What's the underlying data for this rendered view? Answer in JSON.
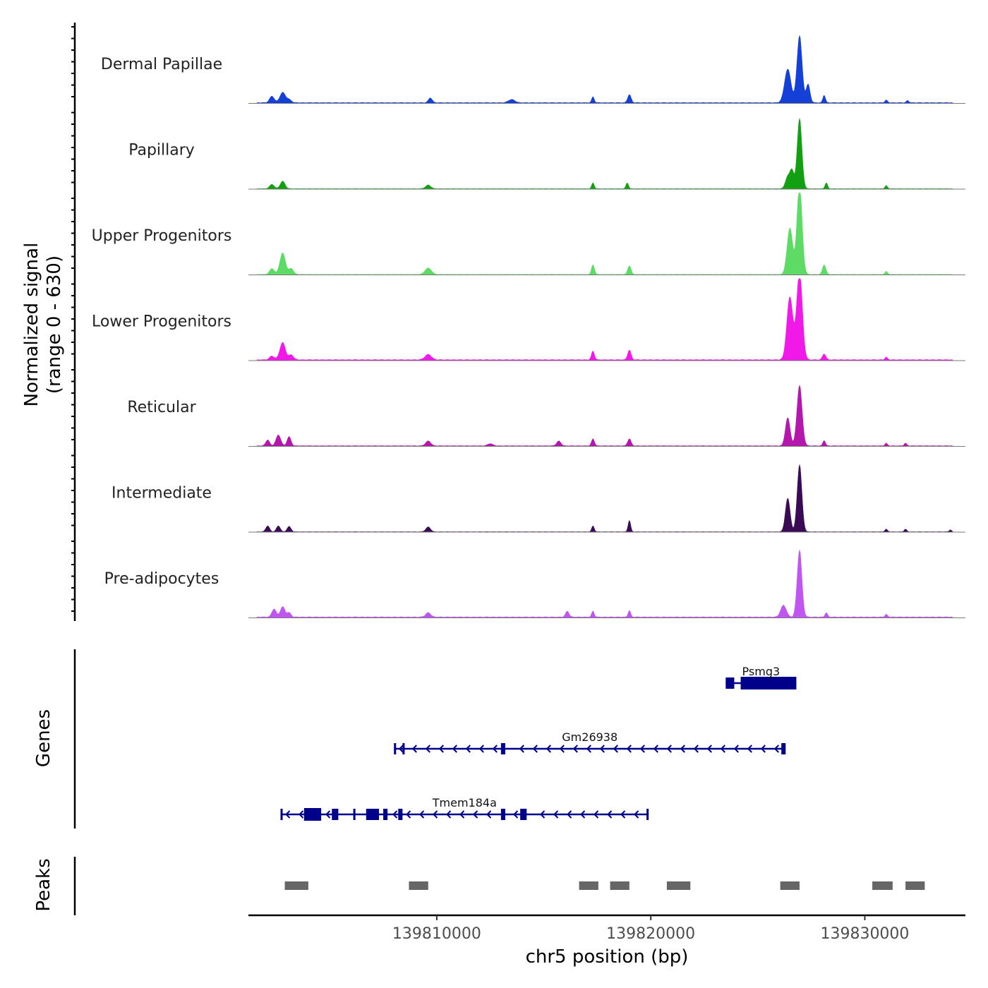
{
  "chart_data": {
    "type": "area",
    "title": "",
    "xlabel": "chr5 position (bp)",
    "ylabel": "Normalized signal\n(range 0 - 630)",
    "ylabel_lines": [
      "Normalized signal",
      "(range 0 - 630)"
    ],
    "ylim": [
      0,
      630
    ],
    "xlim": [
      139801200,
      139834700
    ],
    "xticks": [
      139810000,
      139820000,
      139830000
    ],
    "xtick_labels": [
      "139810000",
      "139820000",
      "139830000"
    ],
    "tracks": [
      {
        "name": "Dermal Papillae",
        "color": "#1440D8",
        "peaks": [
          [
            139802300,
            60,
            110
          ],
          [
            139802800,
            95,
            130
          ],
          [
            139803100,
            28,
            110
          ],
          [
            139809700,
            45,
            90
          ],
          [
            139813500,
            30,
            150
          ],
          [
            139817300,
            55,
            60
          ],
          [
            139819000,
            75,
            80
          ],
          [
            139826400,
            310,
            150
          ],
          [
            139826950,
            620,
            120
          ],
          [
            139827350,
            170,
            90
          ],
          [
            139828100,
            70,
            60
          ],
          [
            139831000,
            25,
            60
          ],
          [
            139832000,
            20,
            60
          ]
        ],
        "base": 10
      },
      {
        "name": "Papillary",
        "color": "#12A012",
        "peaks": [
          [
            139802300,
            40,
            110
          ],
          [
            139802800,
            70,
            110
          ],
          [
            139809600,
            35,
            120
          ],
          [
            139817300,
            55,
            60
          ],
          [
            139818900,
            55,
            60
          ],
          [
            139826400,
            110,
            110
          ],
          [
            139826950,
            650,
            110
          ],
          [
            139826600,
            160,
            90
          ],
          [
            139828200,
            55,
            60
          ],
          [
            139831000,
            30,
            60
          ]
        ],
        "base": 6
      },
      {
        "name": "Upper Progenitors",
        "color": "#5EDB64",
        "peaks": [
          [
            139802300,
            55,
            110
          ],
          [
            139802800,
            200,
            130
          ],
          [
            139803200,
            55,
            110
          ],
          [
            139809600,
            60,
            150
          ],
          [
            139817300,
            90,
            70
          ],
          [
            139819000,
            80,
            80
          ],
          [
            139826500,
            430,
            130
          ],
          [
            139826950,
            840,
            120
          ],
          [
            139828100,
            90,
            80
          ],
          [
            139831000,
            30,
            60
          ]
        ],
        "base": 6
      },
      {
        "name": "Lower Progenitors",
        "color": "#F019E8",
        "peaks": [
          [
            139802300,
            35,
            110
          ],
          [
            139802800,
            160,
            130
          ],
          [
            139803200,
            45,
            110
          ],
          [
            139809600,
            50,
            150
          ],
          [
            139817300,
            80,
            70
          ],
          [
            139819000,
            90,
            80
          ],
          [
            139826500,
            580,
            140
          ],
          [
            139826950,
            830,
            130
          ],
          [
            139828100,
            55,
            80
          ],
          [
            139831000,
            25,
            60
          ]
        ],
        "base": 12
      },
      {
        "name": "Reticular",
        "color": "#B317AC",
        "peaks": [
          [
            139802100,
            55,
            90
          ],
          [
            139802600,
            100,
            110
          ],
          [
            139803100,
            85,
            90
          ],
          [
            139809600,
            45,
            120
          ],
          [
            139812500,
            20,
            120
          ],
          [
            139815700,
            45,
            100
          ],
          [
            139817300,
            65,
            70
          ],
          [
            139819000,
            65,
            80
          ],
          [
            139826400,
            260,
            110
          ],
          [
            139826950,
            560,
            120
          ],
          [
            139828100,
            50,
            60
          ],
          [
            139831000,
            25,
            60
          ],
          [
            139831900,
            25,
            60
          ]
        ],
        "base": 8
      },
      {
        "name": "Intermediate",
        "color": "#3A0A55",
        "peaks": [
          [
            139802100,
            55,
            90
          ],
          [
            139802600,
            55,
            90
          ],
          [
            139803100,
            50,
            90
          ],
          [
            139809600,
            45,
            110
          ],
          [
            139817300,
            55,
            60
          ],
          [
            139819000,
            105,
            60
          ],
          [
            139826400,
            310,
            110
          ],
          [
            139826950,
            620,
            110
          ],
          [
            139831000,
            25,
            60
          ],
          [
            139831900,
            25,
            60
          ],
          [
            139834000,
            18,
            60
          ]
        ],
        "base": 5
      },
      {
        "name": "Pre-adipocytes",
        "color": "#C155F1",
        "peaks": [
          [
            139802400,
            75,
            100
          ],
          [
            139802800,
            95,
            110
          ],
          [
            139803100,
            40,
            90
          ],
          [
            139809600,
            40,
            120
          ],
          [
            139816100,
            55,
            80
          ],
          [
            139817300,
            55,
            60
          ],
          [
            139819000,
            60,
            60
          ],
          [
            139826200,
            110,
            130
          ],
          [
            139826950,
            620,
            110
          ],
          [
            139828200,
            40,
            60
          ],
          [
            139831000,
            25,
            60
          ]
        ],
        "base": 12
      }
    ],
    "genes_track_label": "Genes",
    "genes": [
      {
        "name": "Psmg3",
        "start": 139823500,
        "end": 139826800,
        "strand": "-",
        "exons": [
          [
            139823500,
            139823900
          ],
          [
            139824200,
            139826800
          ]
        ]
      },
      {
        "name": "Gm26938",
        "start": 139808000,
        "end": 139826300,
        "strand": "-",
        "exons": [
          [
            139808000,
            139808100
          ],
          [
            139808400,
            139808500
          ],
          [
            139813000,
            139813200
          ],
          [
            139826100,
            139826300
          ]
        ]
      },
      {
        "name": "Tmem184a",
        "start": 139802700,
        "end": 139819900,
        "strand": "-",
        "exons": [
          [
            139802700,
            139802800
          ],
          [
            139803800,
            139804600
          ],
          [
            139805100,
            139805400
          ],
          [
            139806100,
            139806200
          ],
          [
            139806700,
            139807300
          ],
          [
            139807500,
            139807700
          ],
          [
            139808200,
            139808400
          ],
          [
            139813000,
            139813200
          ],
          [
            139813900,
            139814200
          ],
          [
            139819800,
            139819900
          ]
        ]
      }
    ],
    "peaks_track_label": "Peaks",
    "peaks": [
      [
        139802900,
        139804000
      ],
      [
        139808700,
        139809600
      ],
      [
        139816650,
        139817550
      ],
      [
        139818100,
        139819000
      ],
      [
        139820750,
        139821850
      ],
      [
        139826050,
        139826950
      ],
      [
        139830350,
        139831300
      ],
      [
        139831900,
        139832800
      ]
    ]
  }
}
